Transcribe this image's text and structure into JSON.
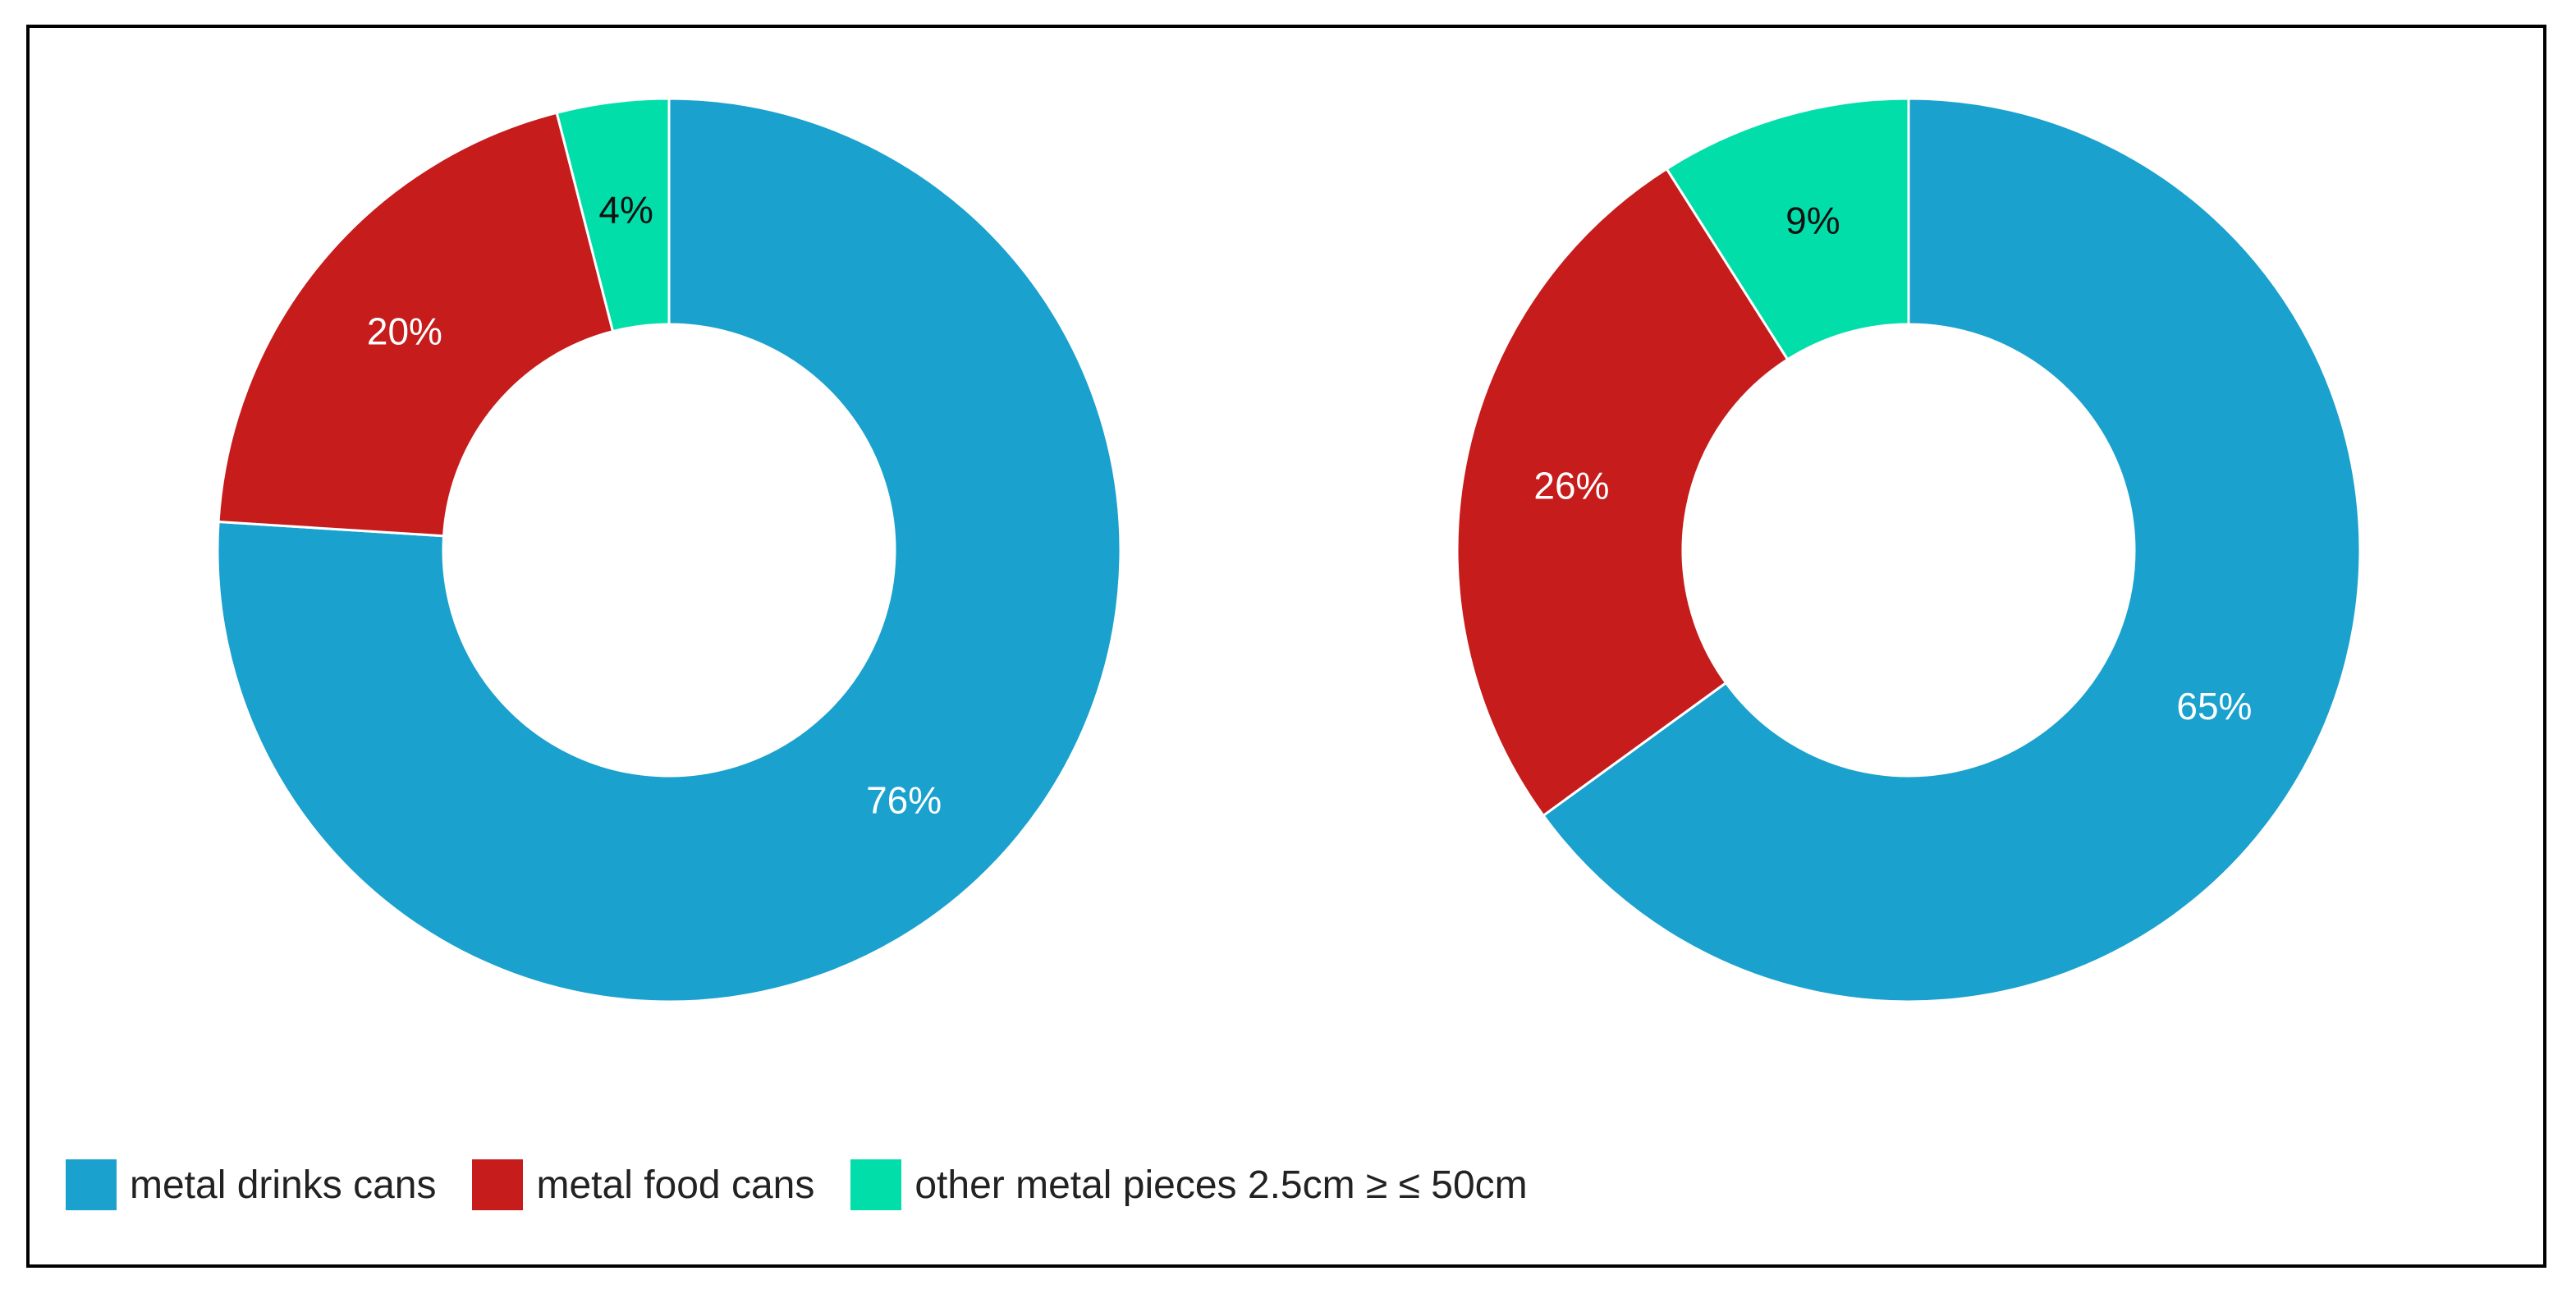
{
  "chart_data": [
    {
      "type": "pie",
      "donut": true,
      "categories": [
        "metal drinks cans",
        "metal food cans",
        "other metal pieces 2.5cm ≥ ≤ 50cm"
      ],
      "values": [
        76,
        20,
        4
      ],
      "labels": [
        "76%",
        "20%",
        "4%"
      ],
      "label_colors": [
        "#ffffff",
        "#ffffff",
        "#111111"
      ],
      "colors": [
        "#1aa1ce",
        "#c61c1c",
        "#02deaa"
      ]
    },
    {
      "type": "pie",
      "donut": true,
      "categories": [
        "metal drinks cans",
        "metal food cans",
        "other metal pieces 2.5cm ≥ ≤ 50cm"
      ],
      "values": [
        65,
        26,
        9
      ],
      "labels": [
        "65%",
        "26%",
        "9%"
      ],
      "label_colors": [
        "#ffffff",
        "#ffffff",
        "#111111"
      ],
      "colors": [
        "#1aa1ce",
        "#c61c1c",
        "#02deaa"
      ]
    }
  ],
  "legend": {
    "placement": "bottom-left",
    "items": [
      {
        "label": "metal drinks cans",
        "color": "#1aa1ce"
      },
      {
        "label": "metal food cans",
        "color": "#c61c1c"
      },
      {
        "label": "other metal pieces 2.5cm ≥ ≤ 50cm",
        "color": "#02deaa"
      }
    ]
  }
}
